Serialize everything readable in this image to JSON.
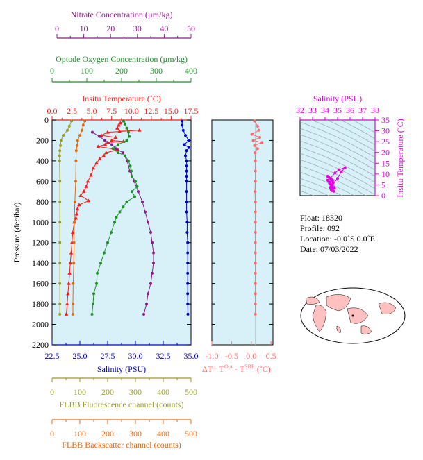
{
  "colors": {
    "nitrate": "#8b1a8b",
    "oxygen": "#1f8f2a",
    "temperature": "#ff1a1a",
    "salinity": "#0000cc",
    "fluorescence": "#9a9a2a",
    "backscatter": "#e06a12",
    "delta": "#ff6a6a",
    "ts_axis": "#e000e0",
    "plot_bg": "#d8f1f9"
  },
  "axes": {
    "nitrate": {
      "title": "Nitrate Concentration (µm/kg)",
      "ticks": [
        "0",
        "10",
        "20",
        "30",
        "40",
        "50"
      ]
    },
    "oxygen": {
      "title": "Optode Oxygen Concentration (µm/kg)",
      "ticks": [
        "0",
        "100",
        "200",
        "300",
        "400"
      ]
    },
    "temperature": {
      "title": "Insitu Temperature (˚C)",
      "ticks": [
        "0.0",
        "2.5",
        "5.0",
        "7.5",
        "10.0",
        "12.5",
        "15.0",
        "17.5"
      ]
    },
    "pressure": {
      "title": "Pressure (decibar)",
      "ticks": [
        "0",
        "200",
        "400",
        "600",
        "800",
        "1000",
        "1200",
        "1400",
        "1600",
        "1800",
        "2000",
        "2200"
      ]
    },
    "salinity": {
      "title": "Salinity (PSU)",
      "ticks": [
        "22.5",
        "25.0",
        "27.5",
        "30.0",
        "32.5",
        "35.0"
      ]
    },
    "fluorescence": {
      "title": "FLBB Fluorescence channel (counts)",
      "ticks": [
        "0",
        "100",
        "200",
        "300",
        "400",
        "500"
      ]
    },
    "backscatter": {
      "title": "FLBB Backscatter channel (counts)",
      "ticks": [
        "0",
        "100",
        "200",
        "300",
        "400",
        "500"
      ]
    },
    "delta": {
      "title": "ΔT= T",
      "sup1": "Opt",
      "mid": " - T",
      "sup2": "SBE",
      "tail": " (˚C)",
      "ticks": [
        "-1.0",
        "-0.5",
        "0.0",
        "0.5"
      ]
    },
    "ts_salinity": {
      "title": "Salinity (PSU)",
      "ticks": [
        "32",
        "33",
        "34",
        "35",
        "36",
        "37",
        "38"
      ]
    },
    "ts_temperature": {
      "title": "Insitu Temperature (˚C)",
      "ticks": [
        "0",
        "5",
        "10",
        "15",
        "20",
        "25",
        "30",
        "35"
      ]
    }
  },
  "info": {
    "float": "Float:  18320",
    "profile": "Profile:  092",
    "location": "Location:  -0.0˚S   0.0˚E",
    "date": "Date:  07/03/2022"
  },
  "chart_data": {
    "type": "line",
    "y_axis": "pressure",
    "ylim": [
      2200,
      0
    ],
    "series": [
      {
        "name": "Insitu Temperature",
        "unit": "˚C",
        "xlim": [
          0,
          17.5
        ],
        "color": "temperature",
        "marker": "triangle",
        "points": [
          [
            9.0,
            10
          ],
          [
            8.6,
            30
          ],
          [
            8.4,
            50
          ],
          [
            8.2,
            80
          ],
          [
            8.5,
            110
          ],
          [
            11.0,
            100
          ],
          [
            7.0,
            120
          ],
          [
            6.2,
            150
          ],
          [
            8.0,
            170
          ],
          [
            7.5,
            200
          ],
          [
            9.0,
            210
          ],
          [
            7.0,
            220
          ],
          [
            6.7,
            240
          ],
          [
            5.8,
            260
          ],
          [
            8.3,
            290
          ],
          [
            6.8,
            320
          ],
          [
            6.5,
            350
          ],
          [
            6.0,
            380
          ],
          [
            5.6,
            420
          ],
          [
            5.2,
            470
          ],
          [
            4.9,
            540
          ],
          [
            4.5,
            600
          ],
          [
            4.3,
            650
          ],
          [
            4.0,
            700
          ],
          [
            3.6,
            740
          ],
          [
            4.6,
            790
          ],
          [
            3.4,
            830
          ],
          [
            3.2,
            870
          ],
          [
            3.1,
            920
          ],
          [
            3.0,
            960
          ],
          [
            2.8,
            1000
          ],
          [
            2.6,
            1100
          ],
          [
            2.5,
            1200
          ],
          [
            2.4,
            1300
          ],
          [
            2.3,
            1400
          ],
          [
            2.2,
            1500
          ],
          [
            2.1,
            1600
          ],
          [
            2.0,
            1700
          ],
          [
            1.9,
            1800
          ],
          [
            1.8,
            1900
          ]
        ]
      },
      {
        "name": "Salinity",
        "unit": "PSU",
        "xlim": [
          22.5,
          35.0
        ],
        "color": "salinity",
        "marker": "circle",
        "points": [
          [
            34.2,
            10
          ],
          [
            34.2,
            50
          ],
          [
            34.3,
            100
          ],
          [
            34.5,
            150
          ],
          [
            34.8,
            200
          ],
          [
            34.4,
            240
          ],
          [
            34.8,
            270
          ],
          [
            34.6,
            300
          ],
          [
            34.5,
            350
          ],
          [
            34.6,
            400
          ],
          [
            34.6,
            450
          ],
          [
            34.6,
            500
          ],
          [
            34.6,
            550
          ],
          [
            34.6,
            600
          ],
          [
            34.6,
            700
          ],
          [
            34.6,
            800
          ],
          [
            34.6,
            900
          ],
          [
            34.65,
            1000
          ],
          [
            34.65,
            1100
          ],
          [
            34.7,
            1200
          ],
          [
            34.7,
            1300
          ],
          [
            34.7,
            1400
          ],
          [
            34.7,
            1500
          ],
          [
            34.7,
            1600
          ],
          [
            34.7,
            1700
          ],
          [
            34.7,
            1800
          ],
          [
            34.72,
            1900
          ]
        ]
      },
      {
        "name": "Nitrate Concentration",
        "unit": "µm/kg",
        "xlim": [
          0,
          50
        ],
        "color": "nitrate",
        "marker": "circle",
        "points": [
          [
            14.5,
            120
          ],
          [
            17.0,
            160
          ],
          [
            19.0,
            200
          ],
          [
            21.5,
            240
          ],
          [
            23.0,
            280
          ],
          [
            25.5,
            320
          ],
          [
            27.0,
            400
          ],
          [
            28.0,
            500
          ],
          [
            29.5,
            600
          ],
          [
            31.0,
            700
          ],
          [
            32.5,
            800
          ],
          [
            33.5,
            900
          ],
          [
            34.5,
            1000
          ],
          [
            35.5,
            1100
          ],
          [
            36.0,
            1200
          ],
          [
            36.5,
            1300
          ],
          [
            36.5,
            1400
          ],
          [
            36.0,
            1500
          ],
          [
            35.5,
            1600
          ],
          [
            34.5,
            1700
          ],
          [
            34.0,
            1800
          ],
          [
            33.0,
            1900
          ]
        ]
      },
      {
        "name": "Optode Oxygen Concentration",
        "unit": "µm/kg",
        "xlim": [
          0,
          400
        ],
        "color": "oxygen",
        "marker": "circle",
        "points": [
          [
            205,
            10
          ],
          [
            210,
            40
          ],
          [
            215,
            80
          ],
          [
            220,
            120
          ],
          [
            222,
            160
          ],
          [
            215,
            200
          ],
          [
            190,
            240
          ],
          [
            175,
            280
          ],
          [
            190,
            320
          ],
          [
            210,
            350
          ],
          [
            220,
            400
          ],
          [
            225,
            450
          ],
          [
            228,
            500
          ],
          [
            230,
            550
          ],
          [
            240,
            600
          ],
          [
            245,
            650
          ],
          [
            230,
            700
          ],
          [
            238,
            750
          ],
          [
            215,
            800
          ],
          [
            205,
            850
          ],
          [
            195,
            900
          ],
          [
            185,
            950
          ],
          [
            180,
            1000
          ],
          [
            170,
            1100
          ],
          [
            160,
            1200
          ],
          [
            150,
            1300
          ],
          [
            140,
            1400
          ],
          [
            130,
            1500
          ],
          [
            128,
            1600
          ],
          [
            120,
            1700
          ],
          [
            118,
            1800
          ],
          [
            115,
            1900
          ]
        ]
      },
      {
        "name": "FLBB Fluorescence channel",
        "unit": "counts",
        "xlim": [
          0,
          500
        ],
        "color": "fluorescence",
        "marker": "circle",
        "points": [
          [
            70,
            10
          ],
          [
            62,
            60
          ],
          [
            55,
            100
          ],
          [
            40,
            150
          ],
          [
            32,
            200
          ],
          [
            30,
            250
          ],
          [
            28,
            300
          ],
          [
            27,
            350
          ],
          [
            27,
            400
          ],
          [
            28,
            600
          ],
          [
            28,
            800
          ],
          [
            28,
            1000
          ],
          [
            28,
            1200
          ],
          [
            28,
            1400
          ],
          [
            28,
            1600
          ],
          [
            28,
            1800
          ],
          [
            28,
            1900
          ]
        ]
      },
      {
        "name": "FLBB Backscatter channel",
        "unit": "counts",
        "xlim": [
          0,
          500
        ],
        "color": "backscatter",
        "marker": "circle",
        "points": [
          [
            118,
            10
          ],
          [
            112,
            50
          ],
          [
            108,
            100
          ],
          [
            100,
            150
          ],
          [
            92,
            200
          ],
          [
            90,
            250
          ],
          [
            87,
            300
          ],
          [
            86,
            400
          ],
          [
            85,
            600
          ],
          [
            82,
            800
          ],
          [
            80,
            1000
          ],
          [
            79,
            1200
          ],
          [
            78,
            1400
          ],
          [
            76,
            1600
          ],
          [
            75,
            1800
          ],
          [
            75,
            1900
          ]
        ]
      },
      {
        "name": "ΔT",
        "unit": "˚C",
        "xlim": [
          -1.0,
          0.5
        ],
        "color": "delta",
        "marker": "circle",
        "points": [
          [
            -0.02,
            10
          ],
          [
            0.05,
            60
          ],
          [
            0.08,
            100
          ],
          [
            -0.08,
            140
          ],
          [
            0.1,
            170
          ],
          [
            -0.05,
            200
          ],
          [
            0.15,
            220
          ],
          [
            -0.02,
            250
          ],
          [
            0.05,
            280
          ],
          [
            -0.01,
            320
          ],
          [
            0.0,
            400
          ],
          [
            0.0,
            500
          ],
          [
            0.0,
            600
          ],
          [
            -0.01,
            700
          ],
          [
            0.0,
            800
          ],
          [
            0.0,
            900
          ],
          [
            0.0,
            1000
          ],
          [
            0.0,
            1100
          ],
          [
            0.0,
            1200
          ],
          [
            0.0,
            1300
          ],
          [
            0.0,
            1400
          ],
          [
            0.0,
            1500
          ],
          [
            0.0,
            1600
          ],
          [
            0.0,
            1700
          ],
          [
            0.0,
            1800
          ],
          [
            0.0,
            1900
          ]
        ]
      },
      {
        "name": "T-S",
        "unit": "",
        "xlim": [
          32,
          38
        ],
        "ylim": [
          0,
          35
        ],
        "color": "ts_axis",
        "marker": "circle",
        "points": [
          [
            34.2,
            9
          ],
          [
            34.3,
            8.5
          ],
          [
            34.45,
            8
          ],
          [
            34.5,
            7.5
          ],
          [
            34.6,
            7
          ],
          [
            34.65,
            6
          ],
          [
            34.6,
            5
          ],
          [
            34.55,
            4.5
          ],
          [
            34.7,
            3.8
          ],
          [
            34.75,
            3.5
          ],
          [
            34.6,
            3
          ],
          [
            34.5,
            2.6
          ],
          [
            34.55,
            2.3
          ],
          [
            34.7,
            2
          ],
          [
            34.2,
            7.2
          ],
          [
            34.4,
            6.3
          ],
          [
            34.35,
            5.8
          ],
          [
            34.5,
            4
          ],
          [
            34.4,
            3.8
          ],
          [
            35.0,
            8
          ],
          [
            35.3,
            11
          ],
          [
            35.6,
            13
          ],
          [
            35.1,
            12
          ],
          [
            34.8,
            10.5
          ],
          [
            34.25,
            7.0
          ],
          [
            34.45,
            5.2
          ]
        ]
      }
    ]
  }
}
